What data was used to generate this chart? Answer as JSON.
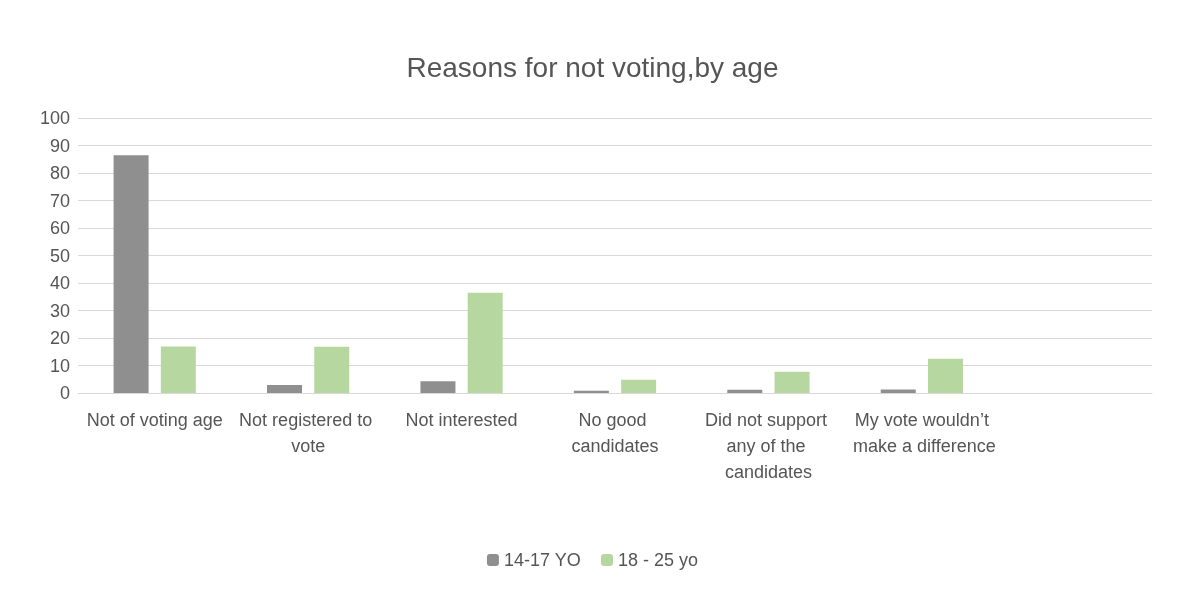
{
  "chart_data": {
    "type": "bar",
    "title": "Reasons for not voting,by age",
    "categories": [
      "Not of voting age",
      "Not registered to vote",
      "Not interested",
      "No good candidates",
      "Did not support any of the candidates",
      "My vote wouldn’t make a difference",
      null
    ],
    "series": [
      {
        "name": "14-17 YO",
        "color": "#8f8f8f",
        "values": [
          86.5,
          2.9,
          4.3,
          0.8,
          1.2,
          1.3,
          null
        ]
      },
      {
        "name": "18 - 25 yo",
        "color": "#b6d7a0",
        "values": [
          16.9,
          16.8,
          36.5,
          4.8,
          7.7,
          12.5,
          null
        ]
      }
    ],
    "ylim": [
      0,
      100
    ],
    "yticks": [
      0,
      10,
      20,
      30,
      40,
      50,
      60,
      70,
      80,
      90,
      100
    ],
    "grid": "y",
    "legend": "bottom"
  }
}
